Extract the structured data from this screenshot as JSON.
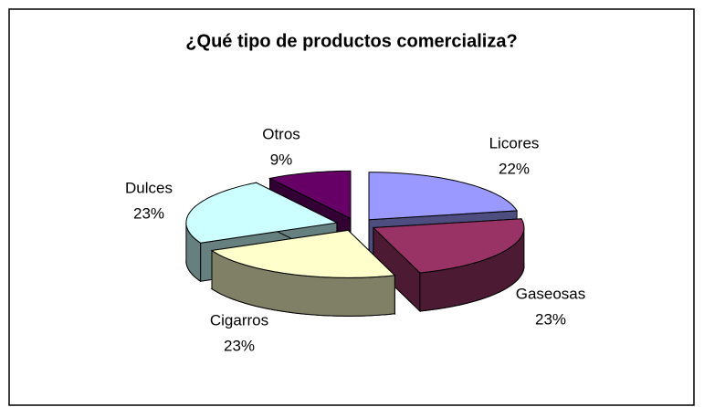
{
  "chart_data": {
    "type": "pie",
    "title": "¿Qué tipo de productos comercializa?",
    "categories": [
      "Licores",
      "Gaseosas",
      "Cigarros",
      "Dulces",
      "Otros"
    ],
    "values": [
      22,
      23,
      23,
      23,
      9
    ],
    "value_labels": [
      "22%",
      "23%",
      "23%",
      "23%",
      "9%"
    ],
    "colors": [
      "#9999ff",
      "#993366",
      "#ffffcc",
      "#ccffff",
      "#660066"
    ]
  }
}
